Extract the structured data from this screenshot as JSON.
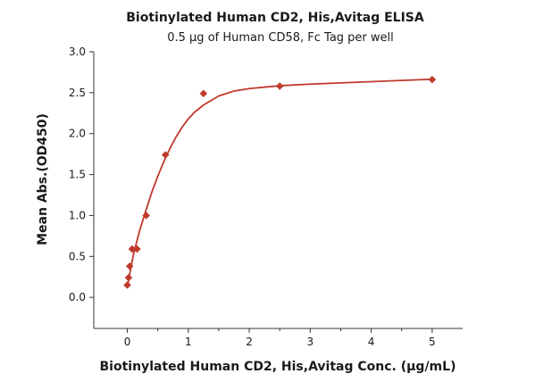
{
  "chart_data": {
    "type": "scatter",
    "title": "Biotinylated Human CD2, His,Avitag ELISA",
    "subtitle": "0.5 μg of Human CD58, Fc Tag per well",
    "xlabel": "Biotinylated Human CD2, His,Avitag Conc. (μg/mL)",
    "ylabel": "Mean Abs.(OD450)",
    "xlim": [
      -0.55,
      5.5
    ],
    "ylim": [
      -0.38,
      3.0
    ],
    "x_ticks": [
      0,
      1,
      2,
      3,
      4,
      5
    ],
    "x_tick_labels": [
      "0",
      "1",
      "2",
      "3",
      "4",
      "5"
    ],
    "y_ticks": [
      0.0,
      0.5,
      1.0,
      1.5,
      2.0,
      2.5,
      3.0
    ],
    "y_tick_labels": [
      "0.0",
      "0.5",
      "1.0",
      "1.5",
      "2.0",
      "2.5",
      "3.0"
    ],
    "grid": false,
    "legend": "none",
    "series": [
      {
        "color": "#c0392b",
        "marker": "diamond",
        "points": [
          {
            "x": 0.0,
            "y": 0.15
          },
          {
            "x": 0.02,
            "y": 0.24
          },
          {
            "x": 0.04,
            "y": 0.38
          },
          {
            "x": 0.08,
            "y": 0.59
          },
          {
            "x": 0.16,
            "y": 0.59
          },
          {
            "x": 0.31,
            "y": 1.0
          },
          {
            "x": 0.625,
            "y": 1.74
          },
          {
            "x": 1.25,
            "y": 2.49
          },
          {
            "x": 2.5,
            "y": 2.58
          },
          {
            "x": 5.0,
            "y": 2.66
          }
        ],
        "fit_curve": [
          {
            "x": 0.0,
            "y": 0.12
          },
          {
            "x": 0.05,
            "y": 0.33
          },
          {
            "x": 0.1,
            "y": 0.52
          },
          {
            "x": 0.2,
            "y": 0.81
          },
          {
            "x": 0.3,
            "y": 1.05
          },
          {
            "x": 0.4,
            "y": 1.28
          },
          {
            "x": 0.5,
            "y": 1.48
          },
          {
            "x": 0.6,
            "y": 1.66
          },
          {
            "x": 0.7,
            "y": 1.82
          },
          {
            "x": 0.8,
            "y": 1.96
          },
          {
            "x": 0.9,
            "y": 2.08
          },
          {
            "x": 1.0,
            "y": 2.18
          },
          {
            "x": 1.1,
            "y": 2.26
          },
          {
            "x": 1.25,
            "y": 2.35
          },
          {
            "x": 1.5,
            "y": 2.46
          },
          {
            "x": 1.75,
            "y": 2.52
          },
          {
            "x": 2.0,
            "y": 2.55
          },
          {
            "x": 2.5,
            "y": 2.585
          },
          {
            "x": 3.0,
            "y": 2.605
          },
          {
            "x": 3.5,
            "y": 2.62
          },
          {
            "x": 4.0,
            "y": 2.635
          },
          {
            "x": 4.5,
            "y": 2.65
          },
          {
            "x": 5.0,
            "y": 2.665
          }
        ]
      }
    ]
  }
}
